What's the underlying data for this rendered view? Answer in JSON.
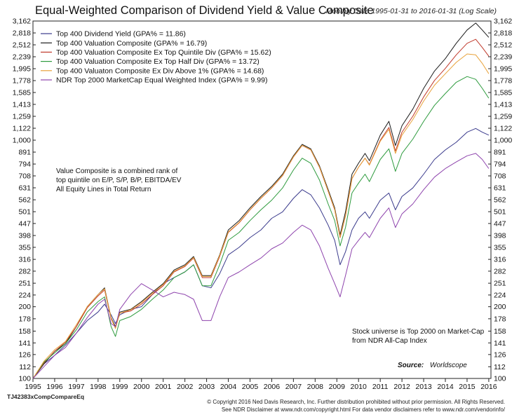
{
  "header": {
    "title": "Equal-Weighted Comparison of Dividend Yield & Value Composite",
    "subtitle": "Monthly Data 1995-01-31 to 2016-01-31 (Log Scale)"
  },
  "notes": {
    "method_line1": "Value Composite is a combined rank of",
    "method_line2": "top quintile on E/P, S/P, B/P, EBITDA/EV",
    "method_line3": "All Equity Lines in Total Return",
    "universe_line1": "Stock universe is Top 2000 on Market-Cap",
    "universe_line2": "from NDR All-Cap Index",
    "source_label": "Source:",
    "source_value": "Worldscope"
  },
  "footer": {
    "chart_id": "TJ42383xCompCompareEq",
    "copyright": "© Copyright 2016 Ned Davis Research, Inc. Further distribution prohibited without prior permission. All Rights Reserved.",
    "disclaimer": "See NDR Disclaimer at www.ndr.com/copyright.html   For data vendor disclaimers refer to www.ndr.com/vendorinfo/"
  },
  "chart_data": {
    "type": "line",
    "yscale": "log",
    "ylim": [
      100,
      3162
    ],
    "xlim": [
      1995.0,
      2016.1
    ],
    "ytick_labels": [
      "100",
      "112",
      "126",
      "141",
      "158",
      "178",
      "200",
      "224",
      "251",
      "282",
      "316",
      "355",
      "398",
      "447",
      "501",
      "562",
      "631",
      "708",
      "794",
      "891",
      "1,000",
      "1,122",
      "1,259",
      "1,413",
      "1,585",
      "1,778",
      "1,995",
      "2,239",
      "2,512",
      "2,818",
      "3,162"
    ],
    "yticks": [
      100,
      112,
      126,
      141,
      158,
      178,
      200,
      224,
      251,
      282,
      316,
      355,
      398,
      447,
      501,
      562,
      631,
      708,
      794,
      891,
      1000,
      1122,
      1259,
      1413,
      1585,
      1778,
      1995,
      2239,
      2512,
      2818,
      3162
    ],
    "xtick_labels": [
      "1995",
      "1996",
      "1997",
      "1998",
      "1999",
      "2000",
      "2001",
      "2002",
      "2003",
      "2004",
      "2005",
      "2006",
      "2007",
      "2008",
      "2009",
      "2010",
      "2011",
      "2012",
      "2013",
      "2014",
      "2015",
      "2016"
    ],
    "xticks": [
      1995,
      1996,
      1997,
      1998,
      1999,
      2000,
      2001,
      2002,
      2003,
      2004,
      2005,
      2006,
      2007,
      2008,
      2009,
      2010,
      2011,
      2012,
      2013,
      2014,
      2015,
      2016
    ],
    "grid": false,
    "legend_position": "top-left",
    "series": [
      {
        "name": "Top 400 Dividend Yield  (GPA% = 11.86)",
        "color": "#3a3a8c",
        "x": [
          1995.0,
          1995.5,
          1996.0,
          1996.5,
          1997.0,
          1997.5,
          1998.0,
          1998.3,
          1998.6,
          1998.8,
          1999.0,
          1999.5,
          2000.0,
          2000.5,
          2001.0,
          2001.5,
          2002.0,
          2002.4,
          2002.8,
          2003.2,
          2003.6,
          2004.0,
          2004.5,
          2005.0,
          2005.5,
          2006.0,
          2006.5,
          2007.0,
          2007.4,
          2007.8,
          2008.2,
          2008.6,
          2008.9,
          2009.15,
          2009.4,
          2009.7,
          2010.0,
          2010.3,
          2010.5,
          2011.0,
          2011.4,
          2011.7,
          2012.0,
          2012.5,
          2013.0,
          2013.5,
          2014.0,
          2014.5,
          2015.0,
          2015.4,
          2015.7,
          2016.0
        ],
        "y": [
          100,
          115,
          125,
          138,
          155,
          175,
          190,
          205,
          185,
          170,
          185,
          195,
          200,
          225,
          250,
          265,
          280,
          300,
          245,
          240,
          275,
          330,
          355,
          390,
          420,
          470,
          500,
          570,
          620,
          590,
          520,
          440,
          380,
          300,
          340,
          420,
          470,
          500,
          470,
          560,
          600,
          510,
          580,
          630,
          720,
          830,
          910,
          980,
          1080,
          1120,
          1080,
          1050
        ]
      },
      {
        "name": "Top 400 Valuation Composite  (GPA% = 16.79)",
        "color": "#1a1a1a",
        "x": [
          1995.0,
          1995.5,
          1996.0,
          1996.5,
          1997.0,
          1997.5,
          1998.0,
          1998.3,
          1998.6,
          1998.8,
          1999.0,
          1999.5,
          2000.0,
          2000.5,
          2001.0,
          2001.5,
          2002.0,
          2002.4,
          2002.8,
          2003.2,
          2003.6,
          2004.0,
          2004.5,
          2005.0,
          2005.5,
          2006.0,
          2006.5,
          2007.0,
          2007.4,
          2007.8,
          2008.2,
          2008.6,
          2008.9,
          2009.15,
          2009.4,
          2009.7,
          2010.0,
          2010.3,
          2010.5,
          2011.0,
          2011.4,
          2011.7,
          2012.0,
          2012.5,
          2013.0,
          2013.5,
          2014.0,
          2014.5,
          2015.0,
          2015.4,
          2015.7,
          2016.0
        ],
        "y": [
          100,
          115,
          130,
          140,
          165,
          200,
          225,
          240,
          180,
          165,
          190,
          195,
          210,
          230,
          250,
          285,
          300,
          325,
          270,
          270,
          330,
          420,
          460,
          520,
          580,
          640,
          720,
          860,
          960,
          920,
          780,
          620,
          520,
          400,
          500,
          720,
          800,
          880,
          820,
          1050,
          1200,
          950,
          1150,
          1350,
          1650,
          1950,
          2200,
          2550,
          2900,
          3100,
          2900,
          2700
        ]
      },
      {
        "name": "Top 400 Valuation Composite Ex Top Quintile Div  (GPA% = 15.62)",
        "color": "#c0392b",
        "x": [
          1995.0,
          1995.5,
          1996.0,
          1996.5,
          1997.0,
          1997.5,
          1998.0,
          1998.3,
          1998.6,
          1998.8,
          1999.0,
          1999.5,
          2000.0,
          2000.5,
          2001.0,
          2001.5,
          2002.0,
          2002.4,
          2002.8,
          2003.2,
          2003.6,
          2004.0,
          2004.5,
          2005.0,
          2005.5,
          2006.0,
          2006.5,
          2007.0,
          2007.4,
          2007.8,
          2008.2,
          2008.6,
          2008.9,
          2009.15,
          2009.4,
          2009.7,
          2010.0,
          2010.3,
          2010.5,
          2011.0,
          2011.4,
          2011.7,
          2012.0,
          2012.5,
          2013.0,
          2013.5,
          2014.0,
          2014.5,
          2015.0,
          2015.4,
          2015.7,
          2016.0
        ],
        "y": [
          100,
          116,
          130,
          142,
          165,
          198,
          222,
          235,
          178,
          163,
          188,
          192,
          205,
          225,
          245,
          280,
          295,
          320,
          265,
          265,
          325,
          410,
          450,
          510,
          570,
          630,
          710,
          850,
          950,
          910,
          770,
          610,
          510,
          390,
          480,
          690,
          770,
          840,
          790,
          1000,
          1130,
          900,
          1080,
          1260,
          1520,
          1780,
          2000,
          2280,
          2550,
          2650,
          2450,
          2250
        ]
      },
      {
        "name": "Top 400 Valuation Composite Ex Top Half Div  (GPA% = 13.72)",
        "color": "#2e9b3e",
        "x": [
          1995.0,
          1995.5,
          1996.0,
          1996.5,
          1997.0,
          1997.5,
          1998.0,
          1998.3,
          1998.6,
          1998.8,
          1999.0,
          1999.5,
          2000.0,
          2000.5,
          2001.0,
          2001.5,
          2002.0,
          2002.4,
          2002.8,
          2003.2,
          2003.6,
          2004.0,
          2004.5,
          2005.0,
          2005.5,
          2006.0,
          2006.5,
          2007.0,
          2007.4,
          2007.8,
          2008.2,
          2008.6,
          2008.9,
          2009.15,
          2009.4,
          2009.7,
          2010.0,
          2010.3,
          2010.5,
          2011.0,
          2011.4,
          2011.7,
          2012.0,
          2012.5,
          2013.0,
          2013.5,
          2014.0,
          2014.5,
          2015.0,
          2015.4,
          2015.7,
          2016.0
        ],
        "y": [
          100,
          117,
          128,
          140,
          160,
          190,
          210,
          220,
          165,
          150,
          175,
          182,
          195,
          215,
          235,
          265,
          280,
          300,
          245,
          245,
          300,
          380,
          410,
          460,
          510,
          560,
          630,
          750,
          840,
          800,
          680,
          540,
          460,
          360,
          430,
          600,
          660,
          720,
          670,
          830,
          920,
          740,
          880,
          1010,
          1200,
          1400,
          1570,
          1750,
          1850,
          1800,
          1650,
          1500
        ]
      },
      {
        "name": "Top 400 Valuaton Composite Ex Div Above 1%  (GPA% = 14.68)",
        "color": "#e8a23a",
        "x": [
          1995.0,
          1995.5,
          1996.0,
          1996.5,
          1997.0,
          1997.5,
          1998.0,
          1998.3,
          1998.6,
          1998.8,
          1999.0,
          1999.5,
          2000.0,
          2000.5,
          2001.0,
          2001.5,
          2002.0,
          2002.4,
          2002.8,
          2003.2,
          2003.6,
          2004.0,
          2004.5,
          2005.0,
          2005.5,
          2006.0,
          2006.5,
          2007.0,
          2007.4,
          2007.8,
          2008.2,
          2008.6,
          2008.9,
          2009.15,
          2009.4,
          2009.7,
          2010.0,
          2010.3,
          2010.5,
          2011.0,
          2011.4,
          2011.7,
          2012.0,
          2012.5,
          2013.0,
          2013.5,
          2014.0,
          2014.5,
          2015.0,
          2015.4,
          2015.7,
          2016.0
        ],
        "y": [
          100,
          118,
          132,
          143,
          168,
          200,
          225,
          238,
          180,
          162,
          188,
          194,
          208,
          228,
          248,
          282,
          297,
          322,
          268,
          268,
          328,
          412,
          452,
          512,
          572,
          632,
          712,
          852,
          952,
          912,
          772,
          612,
          512,
          392,
          482,
          692,
          770,
          840,
          785,
          990,
          1110,
          880,
          1050,
          1220,
          1460,
          1700,
          1900,
          2120,
          2300,
          2280,
          2100,
          1900
        ]
      },
      {
        "name": "NDR Top 2000 MarketCap Equal Weighted Index  (GPA% = 9.99)",
        "color": "#8e44ad",
        "x": [
          1995.0,
          1995.5,
          1996.0,
          1996.5,
          1997.0,
          1997.5,
          1998.0,
          1998.3,
          1998.6,
          1998.8,
          1999.0,
          1999.5,
          2000.0,
          2000.5,
          2001.0,
          2001.5,
          2002.0,
          2002.4,
          2002.8,
          2003.2,
          2003.6,
          2004.0,
          2004.5,
          2005.0,
          2005.5,
          2006.0,
          2006.5,
          2007.0,
          2007.4,
          2007.8,
          2008.2,
          2008.6,
          2008.9,
          2009.15,
          2009.4,
          2009.7,
          2010.0,
          2010.3,
          2010.5,
          2011.0,
          2011.4,
          2011.7,
          2012.0,
          2012.5,
          2013.0,
          2013.5,
          2014.0,
          2014.5,
          2015.0,
          2015.4,
          2015.7,
          2016.0
        ],
        "y": [
          100,
          112,
          125,
          135,
          155,
          180,
          205,
          215,
          170,
          165,
          195,
          225,
          250,
          235,
          220,
          230,
          225,
          215,
          175,
          175,
          220,
          265,
          280,
          300,
          320,
          350,
          370,
          410,
          440,
          420,
          360,
          290,
          250,
          220,
          270,
          350,
          380,
          410,
          390,
          470,
          520,
          430,
          490,
          540,
          620,
          700,
          760,
          810,
          860,
          880,
          830,
          760
        ]
      }
    ]
  }
}
